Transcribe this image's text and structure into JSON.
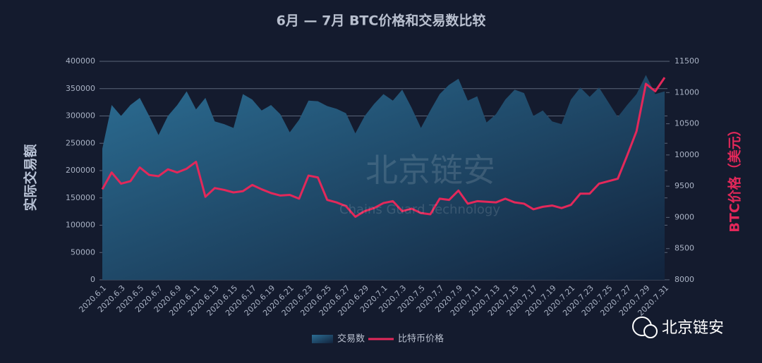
{
  "chart_data": {
    "type": "area-line",
    "title": "6月 — 7月 BTC价格和交易数比较",
    "y_label": "实际交易额",
    "y2_label": "BTC价格（美元）",
    "watermark": "北京链安",
    "watermark_sub": "Chains Guard Technology",
    "footer": "北京链安",
    "categories": [
      "2020.6.1",
      null,
      "2020.6.3",
      null,
      "2020.6.5",
      null,
      "2020.6.7",
      null,
      "2020.6.9",
      null,
      "2020.6.11",
      null,
      "2020.6.13",
      null,
      "2020.6.15",
      null,
      "2020.6.17",
      null,
      "2020.6.19",
      null,
      "2020.6.21",
      null,
      "2020.6.23",
      null,
      "2020.6.25",
      null,
      "2020.6.27",
      null,
      "2020.6.29",
      null,
      "2020.7.1",
      null,
      "2020.7.3",
      null,
      "2020.7.5",
      null,
      "2020.7.7",
      null,
      "2020.7.9",
      null,
      "2020.7.11",
      null,
      "2020.7.13",
      null,
      "2020.7.15",
      null,
      "2020.7.17",
      null,
      "2020.7.19",
      null,
      "2020.7.21",
      null,
      "2020.7.23",
      null,
      "2020.7.25",
      null,
      "2020.7.27",
      null,
      "2020.7.29",
      null,
      "2020.7.31"
    ],
    "series": [
      {
        "name": "交易数",
        "kind": "area",
        "color": "#2a6a90",
        "values": [
          240000,
          320000,
          300000,
          320000,
          333000,
          300000,
          265000,
          300000,
          320000,
          345000,
          312000,
          333000,
          290000,
          285000,
          278000,
          340000,
          330000,
          310000,
          320000,
          303000,
          270000,
          293000,
          328000,
          327000,
          318000,
          313000,
          305000,
          268000,
          300000,
          322000,
          340000,
          328000,
          348000,
          315000,
          278000,
          310000,
          340000,
          357000,
          368000,
          328000,
          336000,
          288000,
          303000,
          330000,
          348000,
          342000,
          300000,
          310000,
          290000,
          285000,
          330000,
          352000,
          335000,
          352000,
          325000,
          298000,
          320000,
          340000,
          375000,
          340000,
          345000
        ]
      },
      {
        "name": "比特币价格",
        "kind": "line",
        "axis": "y2",
        "color": "#e3285a",
        "values": [
          9450,
          9720,
          9540,
          9580,
          9800,
          9680,
          9660,
          9770,
          9720,
          9780,
          9890,
          9330,
          9470,
          9440,
          9400,
          9420,
          9520,
          9450,
          9390,
          9350,
          9360,
          9300,
          9670,
          9640,
          9280,
          9240,
          9180,
          9010,
          9100,
          9150,
          9230,
          9260,
          9100,
          9140,
          9070,
          9050,
          9300,
          9280,
          9430,
          9220,
          9260,
          9250,
          9240,
          9300,
          9240,
          9220,
          9130,
          9170,
          9190,
          9150,
          9200,
          9380,
          9380,
          9540,
          9580,
          9620,
          9990,
          10380,
          11140,
          11020,
          11240
        ]
      }
    ],
    "ylim": [
      0,
      400000
    ],
    "yticks": [
      0,
      50000,
      100000,
      150000,
      200000,
      250000,
      300000,
      350000,
      400000
    ],
    "y2lim": [
      8000,
      11500
    ],
    "y2ticks": [
      8000,
      8500,
      9000,
      9500,
      10000,
      10500,
      11000,
      11500
    ],
    "grid": true,
    "legend": "bottom"
  }
}
